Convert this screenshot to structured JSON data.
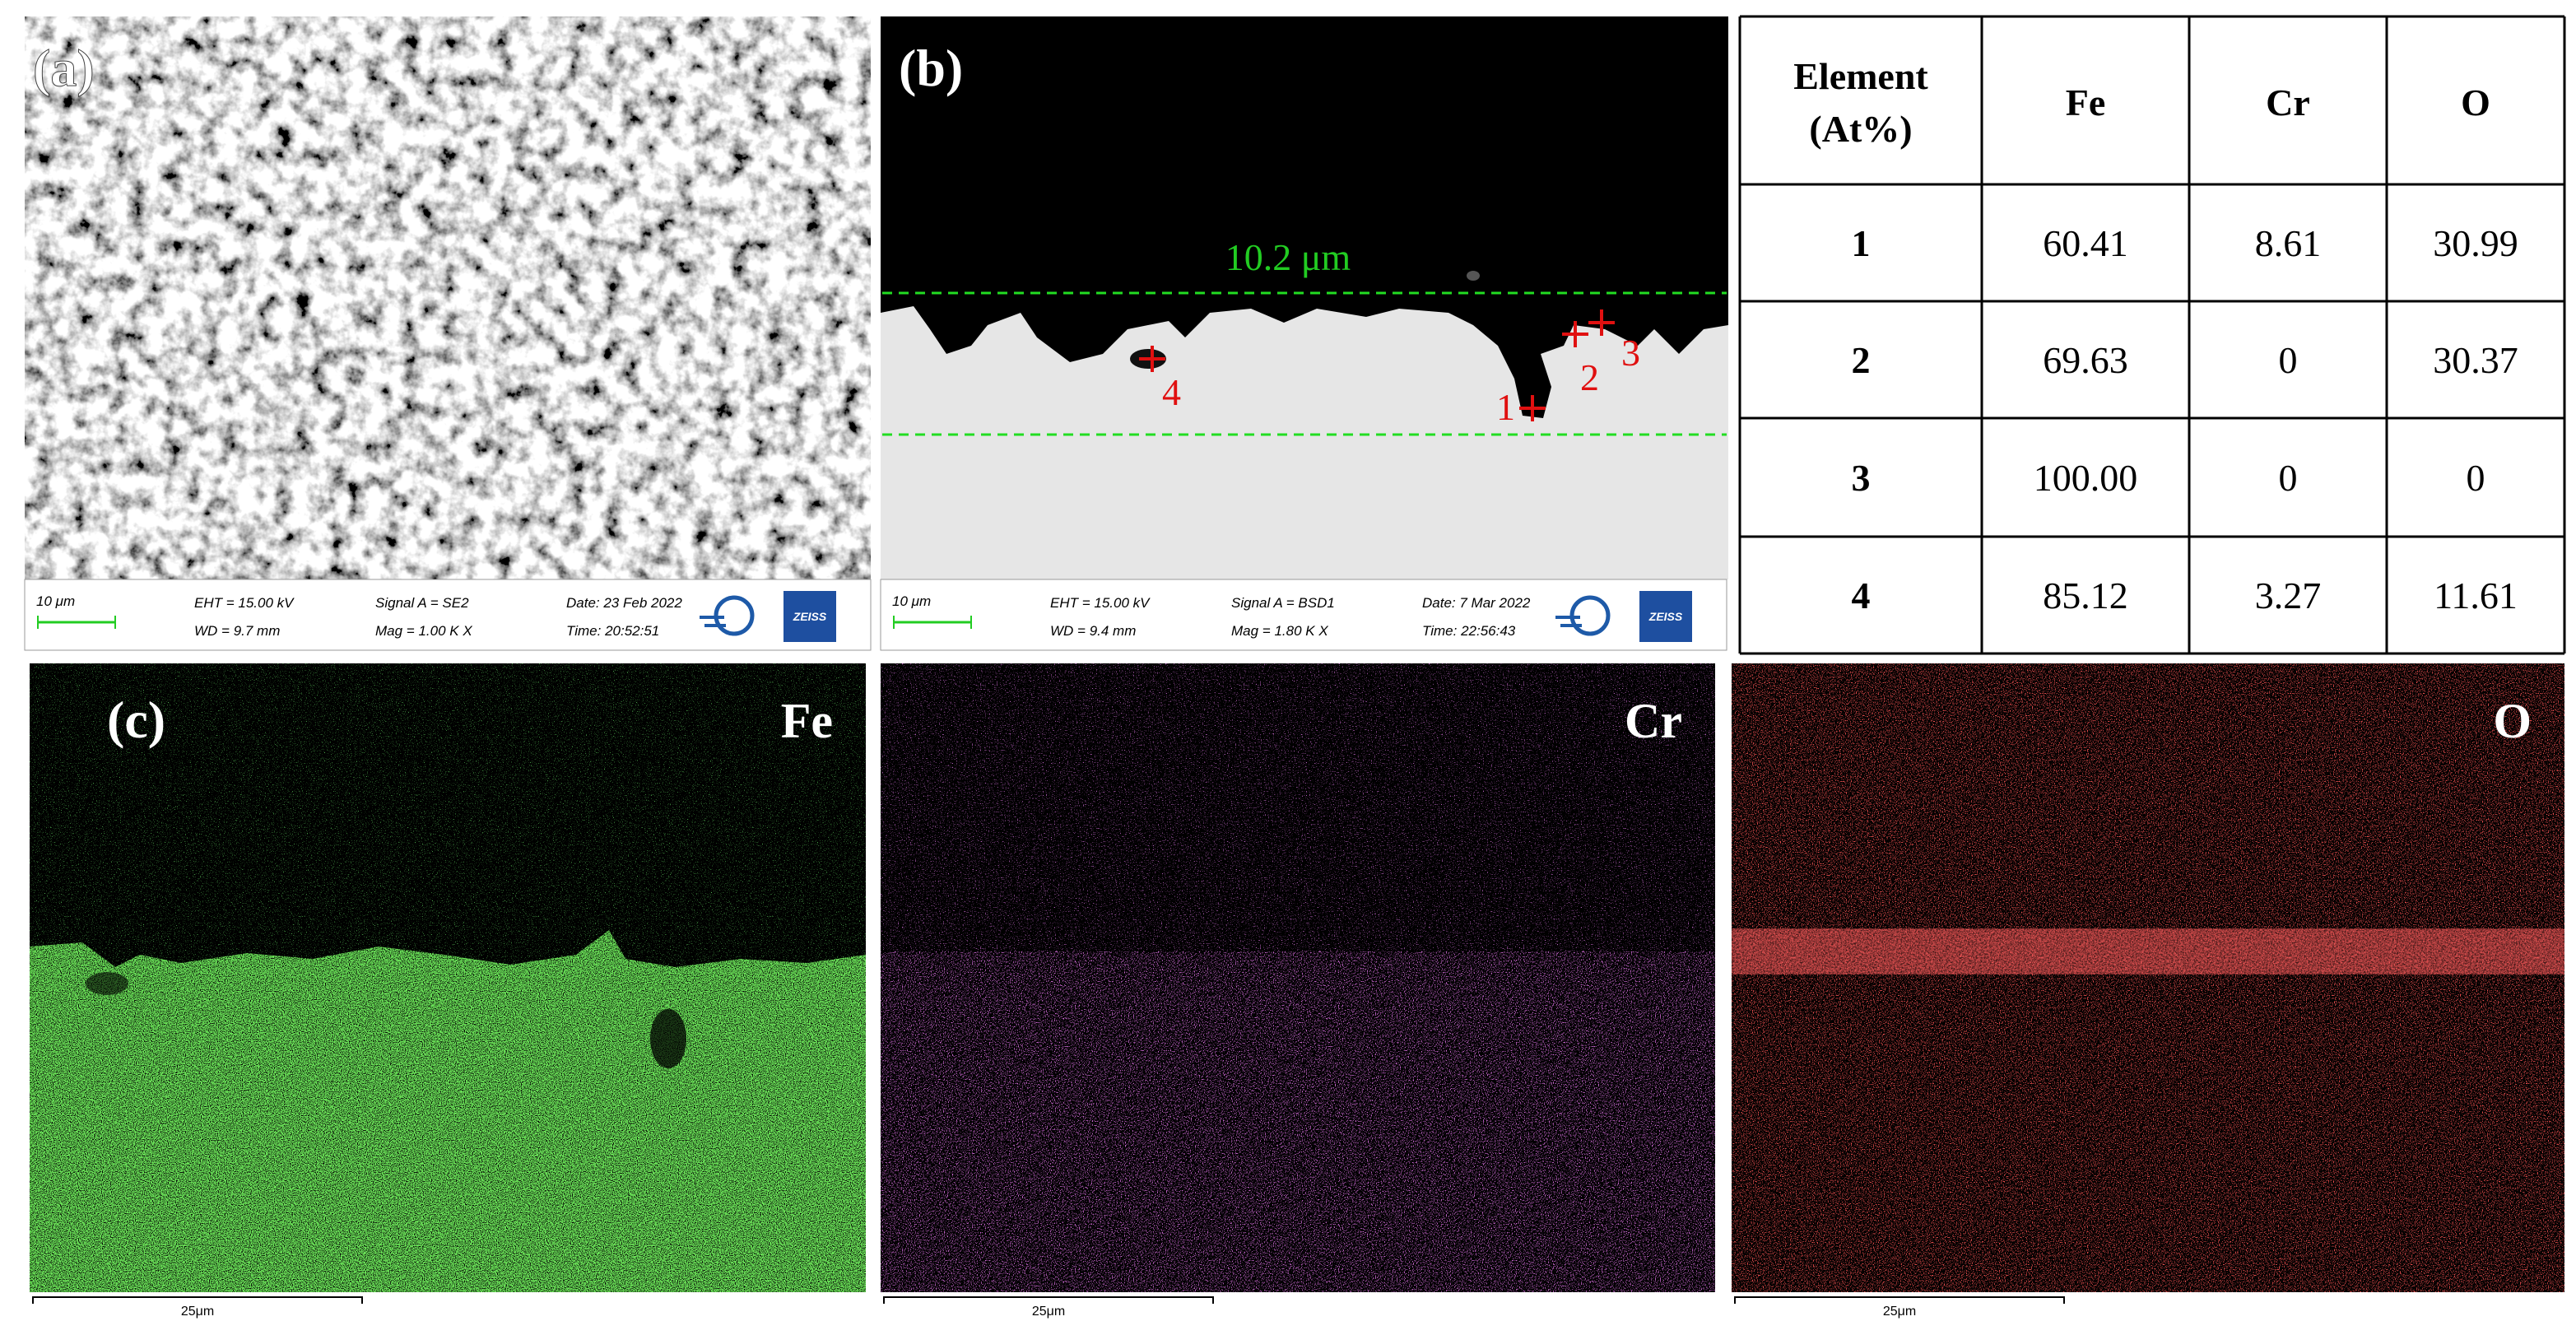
{
  "panels": {
    "a": {
      "label": "(a)",
      "info": {
        "scale": "10 μm",
        "eht": "EHT = 15.00 kV",
        "wd": "WD = 9.7 mm",
        "signal": "Signal A = SE2",
        "mag": "Mag =   1.00 K X",
        "date": "Date: 23 Feb 2022",
        "time": "Time: 20:52:51",
        "brand": "ZEISS"
      }
    },
    "b": {
      "label": "(b)",
      "thickness": "10.2 μm",
      "points": [
        "1",
        "2",
        "3",
        "4"
      ],
      "info": {
        "scale": "10 μm",
        "eht": "EHT = 15.00 kV",
        "wd": "WD = 9.4 mm",
        "signal": "Signal A = BSD1",
        "mag": "Mag =   1.80 K X",
        "date": "Date: 7 Mar 2022",
        "time": "Time: 22:56:43",
        "brand": "ZEISS"
      }
    },
    "c": {
      "label": "(c)"
    }
  },
  "table": {
    "header": [
      "Element",
      "Fe",
      "Cr",
      "O"
    ],
    "header_unit": "(At%)",
    "rows": [
      [
        "1",
        "60.41",
        "8.61",
        "30.99"
      ],
      [
        "2",
        "69.63",
        "0",
        "30.37"
      ],
      [
        "3",
        "100.00",
        "0",
        "0"
      ],
      [
        "4",
        "85.12",
        "3.27",
        "11.61"
      ]
    ]
  },
  "maps": [
    {
      "element": "Fe",
      "scale": "25μm"
    },
    {
      "element": "Cr",
      "scale": "25μm"
    },
    {
      "element": "O",
      "scale": "25μm"
    }
  ]
}
